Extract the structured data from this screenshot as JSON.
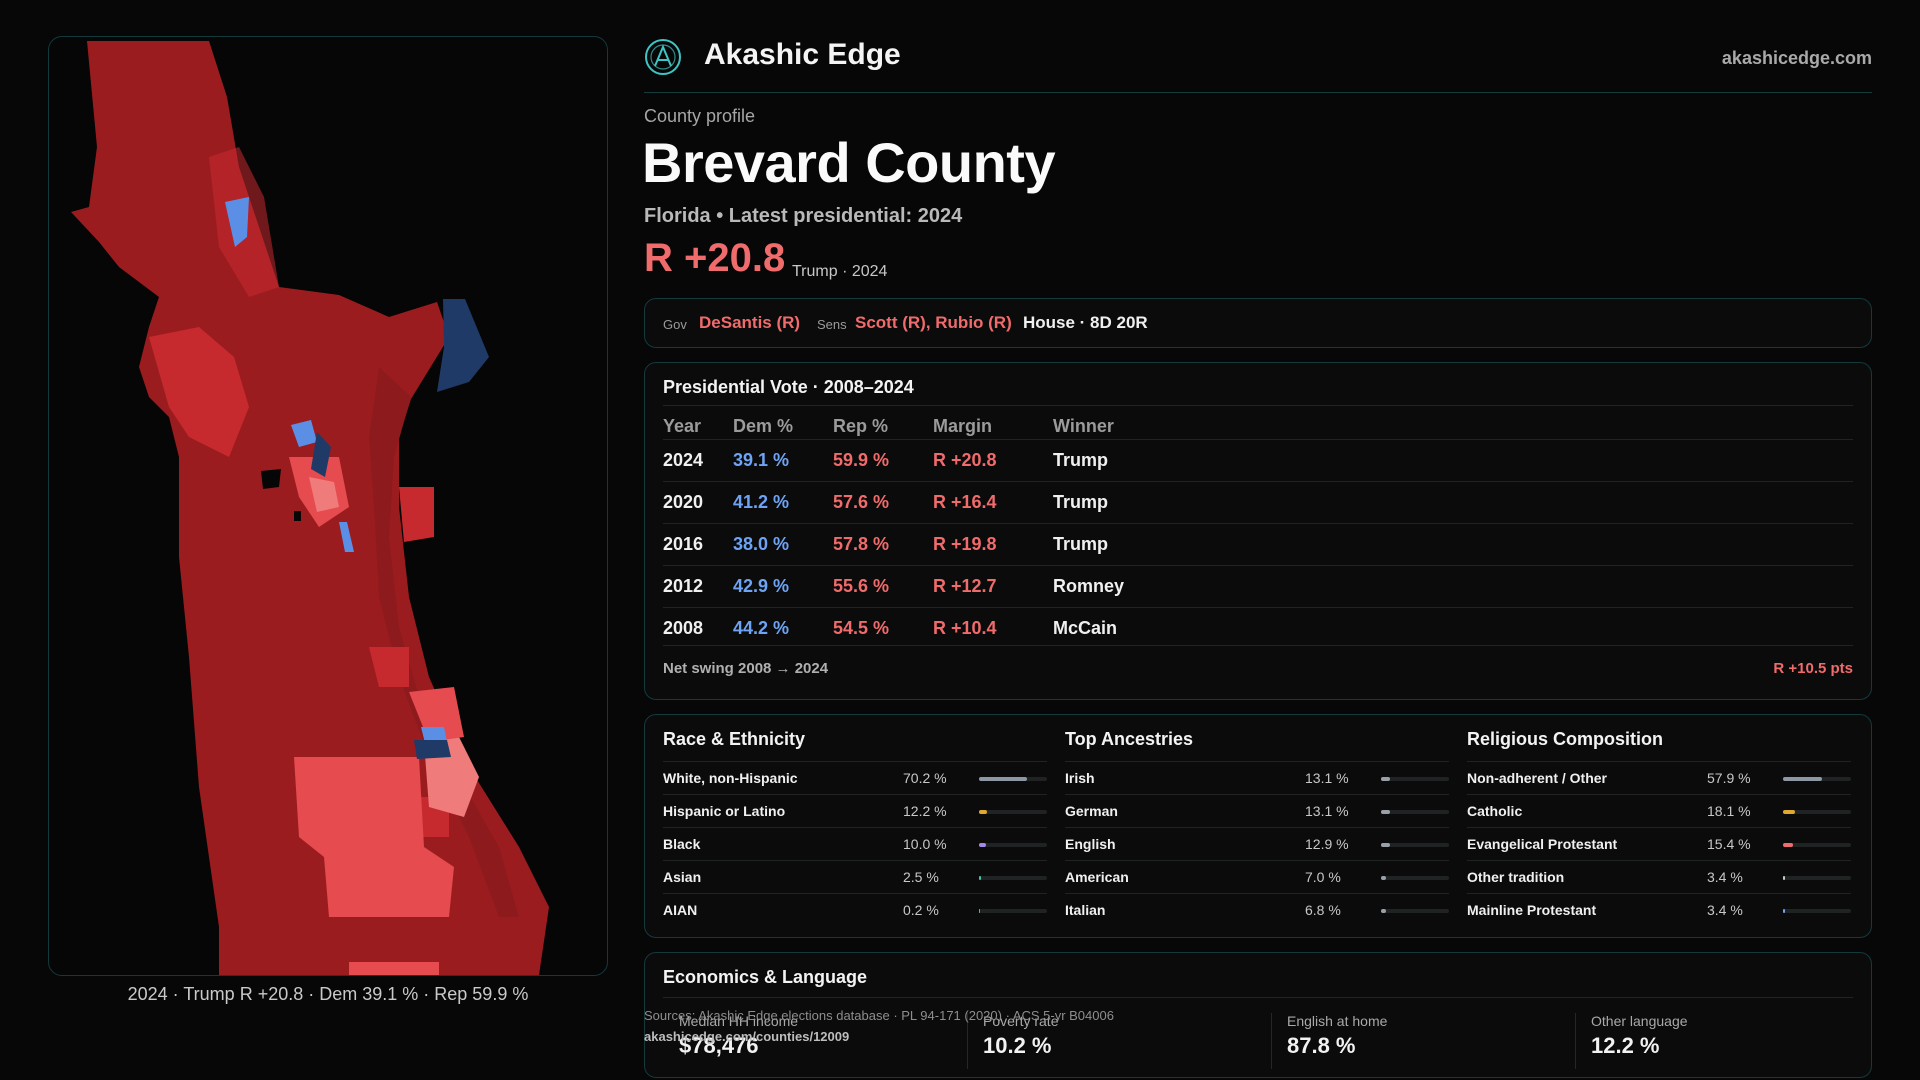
{
  "brand": {
    "name": "Akashic Edge",
    "site": "akashicedge.com"
  },
  "profile": {
    "kicker": "County profile",
    "title": "Brevard County",
    "subtitle": "Florida • Latest presidential: 2024",
    "margin": "R +20.8",
    "margin_note": "Trump · 2024"
  },
  "officials": {
    "gov_label": "Gov",
    "gov": "DeSantis (R)",
    "sens_label": "Sens",
    "sens": "Scott (R), Rubio (R)",
    "house": "House · 8D 20R"
  },
  "presidential": {
    "title": "Presidential Vote · 2008–2024",
    "headers": [
      "Year",
      "Dem %",
      "Rep %",
      "Margin",
      "Winner"
    ],
    "rows": [
      {
        "year": "2024",
        "dem": "39.1 %",
        "rep": "59.9 %",
        "margin": "R +20.8",
        "winner": "Trump"
      },
      {
        "year": "2020",
        "dem": "41.2 %",
        "rep": "57.6 %",
        "margin": "R +16.4",
        "winner": "Trump"
      },
      {
        "year": "2016",
        "dem": "38.0 %",
        "rep": "57.8 %",
        "margin": "R +19.8",
        "winner": "Trump"
      },
      {
        "year": "2012",
        "dem": "42.9 %",
        "rep": "55.6 %",
        "margin": "R +12.7",
        "winner": "Romney"
      },
      {
        "year": "2008",
        "dem": "44.2 %",
        "rep": "54.5 %",
        "margin": "R +10.4",
        "winner": "McCain"
      }
    ],
    "swing_label": "Net swing 2008 → 2024",
    "swing_value": "R +10.5 pts"
  },
  "race": {
    "title": "Race & Ethnicity",
    "rows": [
      {
        "label": "White, non-Hispanic",
        "pct": "70.2 %",
        "value": 70.2,
        "color": "#8e98a4"
      },
      {
        "label": "Hispanic or Latino",
        "pct": "12.2 %",
        "value": 12.2,
        "color": "#e0a92e"
      },
      {
        "label": "Black",
        "pct": "10.0 %",
        "value": 10.0,
        "color": "#a48ae8"
      },
      {
        "label": "Asian",
        "pct": "2.5 %",
        "value": 2.5,
        "color": "#3fc4b0"
      },
      {
        "label": "AIAN",
        "pct": "0.2 %",
        "value": 0.2,
        "color": "#8e98a4"
      }
    ]
  },
  "ancestry": {
    "title": "Top Ancestries",
    "rows": [
      {
        "label": "Irish",
        "pct": "13.1 %",
        "value": 13.1,
        "color": "#9aa0a8"
      },
      {
        "label": "German",
        "pct": "13.1 %",
        "value": 13.1,
        "color": "#9aa0a8"
      },
      {
        "label": "English",
        "pct": "12.9 %",
        "value": 12.9,
        "color": "#9aa0a8"
      },
      {
        "label": "American",
        "pct": "7.0 %",
        "value": 7.0,
        "color": "#9aa0a8"
      },
      {
        "label": "Italian",
        "pct": "6.8 %",
        "value": 6.8,
        "color": "#9aa0a8"
      }
    ]
  },
  "religion": {
    "title": "Religious Composition",
    "rows": [
      {
        "label": "Non-adherent / Other",
        "pct": "57.9 %",
        "value": 57.9,
        "color": "#8e98a4"
      },
      {
        "label": "Catholic",
        "pct": "18.1 %",
        "value": 18.1,
        "color": "#e0a92e"
      },
      {
        "label": "Evangelical Protestant",
        "pct": "15.4 %",
        "value": 15.4,
        "color": "#f06b6b"
      },
      {
        "label": "Other tradition",
        "pct": "3.4 %",
        "value": 3.4,
        "color": "#c9c9c9"
      },
      {
        "label": "Mainline Protestant",
        "pct": "3.4 %",
        "value": 3.4,
        "color": "#6ea4f4"
      }
    ]
  },
  "economics": {
    "title": "Economics & Language",
    "cells": [
      {
        "label": "Median HH income",
        "value": "$78,476"
      },
      {
        "label": "Poverty rate",
        "value": "10.2 %"
      },
      {
        "label": "English at home",
        "value": "87.8 %"
      },
      {
        "label": "Other language",
        "value": "12.2 %"
      }
    ]
  },
  "sources": {
    "text": "Sources: Akashic Edge elections database · PL 94-171 (2020) · ACS 5-yr B04006",
    "url": "akashicedge.com/counties/12009"
  },
  "map": {
    "caption": "2024 · Trump R +20.8 · Dem 39.1 % · Rep 59.9 %",
    "colors": {
      "strong_r": "#9b1c1f",
      "mid_r": "#c62a2f",
      "light_r": "#e54b4f",
      "pale_r": "#f07b7b",
      "light_d": "#5b8fe6",
      "dark_d": "#1f3a66"
    }
  }
}
